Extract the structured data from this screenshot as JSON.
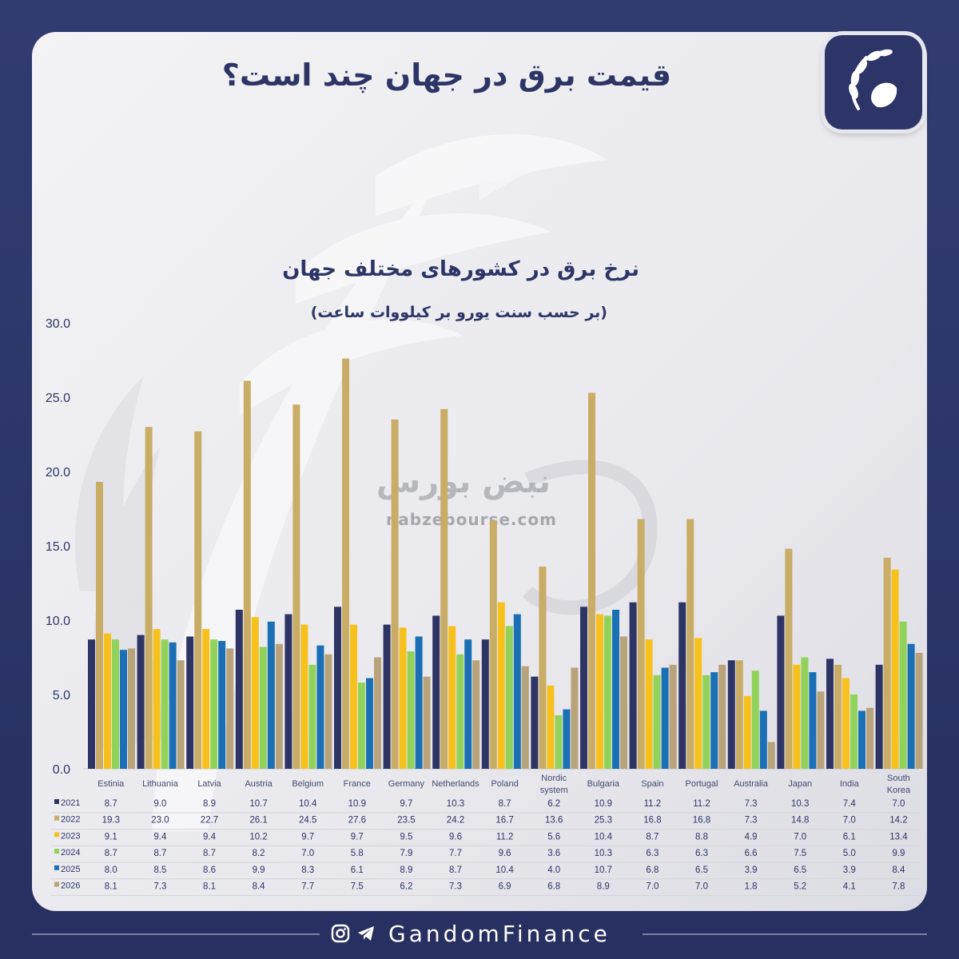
{
  "header": {
    "title": "قیمت برق در جهان چند است؟",
    "subtitle": "نرخ برق در کشورهای مختلف جهان",
    "unit_note": "(بر حسب سنت یورو بر کیلووات ساعت)"
  },
  "watermark": {
    "name": "نبض بورس",
    "url": "nabzebourse.com"
  },
  "footer": {
    "brand": "GandomFinance",
    "icons": [
      "instagram-icon",
      "telegram-icon"
    ]
  },
  "colors": {
    "frame": "#2c3566",
    "card": "#eeeef2"
  },
  "chart_data": {
    "type": "bar",
    "title": "نرخ برق در کشورهای مختلف جهان",
    "ylabel": "(بر حسب سنت یورو بر کیلووات ساعت)",
    "ylim": [
      0,
      30
    ],
    "yticks": [
      "0.0",
      "5.0",
      "10.0",
      "15.0",
      "20.0",
      "25.0",
      "30.0"
    ],
    "categories": [
      "Estinia",
      "Lithuania",
      "Latvia",
      "Austria",
      "Belgium",
      "France",
      "Germany",
      "Netherlands",
      "Poland",
      "Nordic system",
      "Bulgaria",
      "Spain",
      "Portugal",
      "Australia",
      "Japan",
      "India",
      "South Korea"
    ],
    "series": [
      {
        "name": "2021",
        "color": "#2e3463",
        "values": [
          "8.7",
          "9.0",
          "8.9",
          "10.7",
          "10.4",
          "10.9",
          "9.7",
          "10.3",
          "8.7",
          "6.2",
          "10.9",
          "11.2",
          "11.2",
          "7.3",
          "10.3",
          "7.4",
          "7.0"
        ]
      },
      {
        "name": "2022",
        "color": "#c9ac66",
        "values": [
          "19.3",
          "23.0",
          "22.7",
          "26.1",
          "24.5",
          "27.6",
          "23.5",
          "24.2",
          "16.7",
          "13.6",
          "25.3",
          "16.8",
          "16.8",
          "7.3",
          "14.8",
          "7.0",
          "14.2"
        ]
      },
      {
        "name": "2023",
        "color": "#f7c11d",
        "values": [
          "9.1",
          "9.4",
          "9.4",
          "10.2",
          "9.7",
          "9.7",
          "9.5",
          "9.6",
          "11.2",
          "5.6",
          "10.4",
          "8.7",
          "8.8",
          "4.9",
          "7.0",
          "6.1",
          "13.4"
        ]
      },
      {
        "name": "2024",
        "color": "#91d35a",
        "values": [
          "8.7",
          "8.7",
          "8.7",
          "8.2",
          "7.0",
          "5.8",
          "7.9",
          "7.7",
          "9.6",
          "3.6",
          "10.3",
          "6.3",
          "6.3",
          "6.6",
          "7.5",
          "5.0",
          "9.9"
        ]
      },
      {
        "name": "2025",
        "color": "#1a6fb5",
        "values": [
          "8.0",
          "8.5",
          "8.6",
          "9.9",
          "8.3",
          "6.1",
          "8.9",
          "8.7",
          "10.4",
          "4.0",
          "10.7",
          "6.8",
          "6.5",
          "3.9",
          "6.5",
          "3.9",
          "8.4"
        ]
      },
      {
        "name": "2026",
        "color": "#b8a37a",
        "values": [
          "8.1",
          "7.3",
          "8.1",
          "8.4",
          "7.7",
          "7.5",
          "6.2",
          "7.3",
          "6.9",
          "6.8",
          "8.9",
          "7.0",
          "7.0",
          "1.8",
          "5.2",
          "4.1",
          "7.8"
        ]
      }
    ]
  }
}
